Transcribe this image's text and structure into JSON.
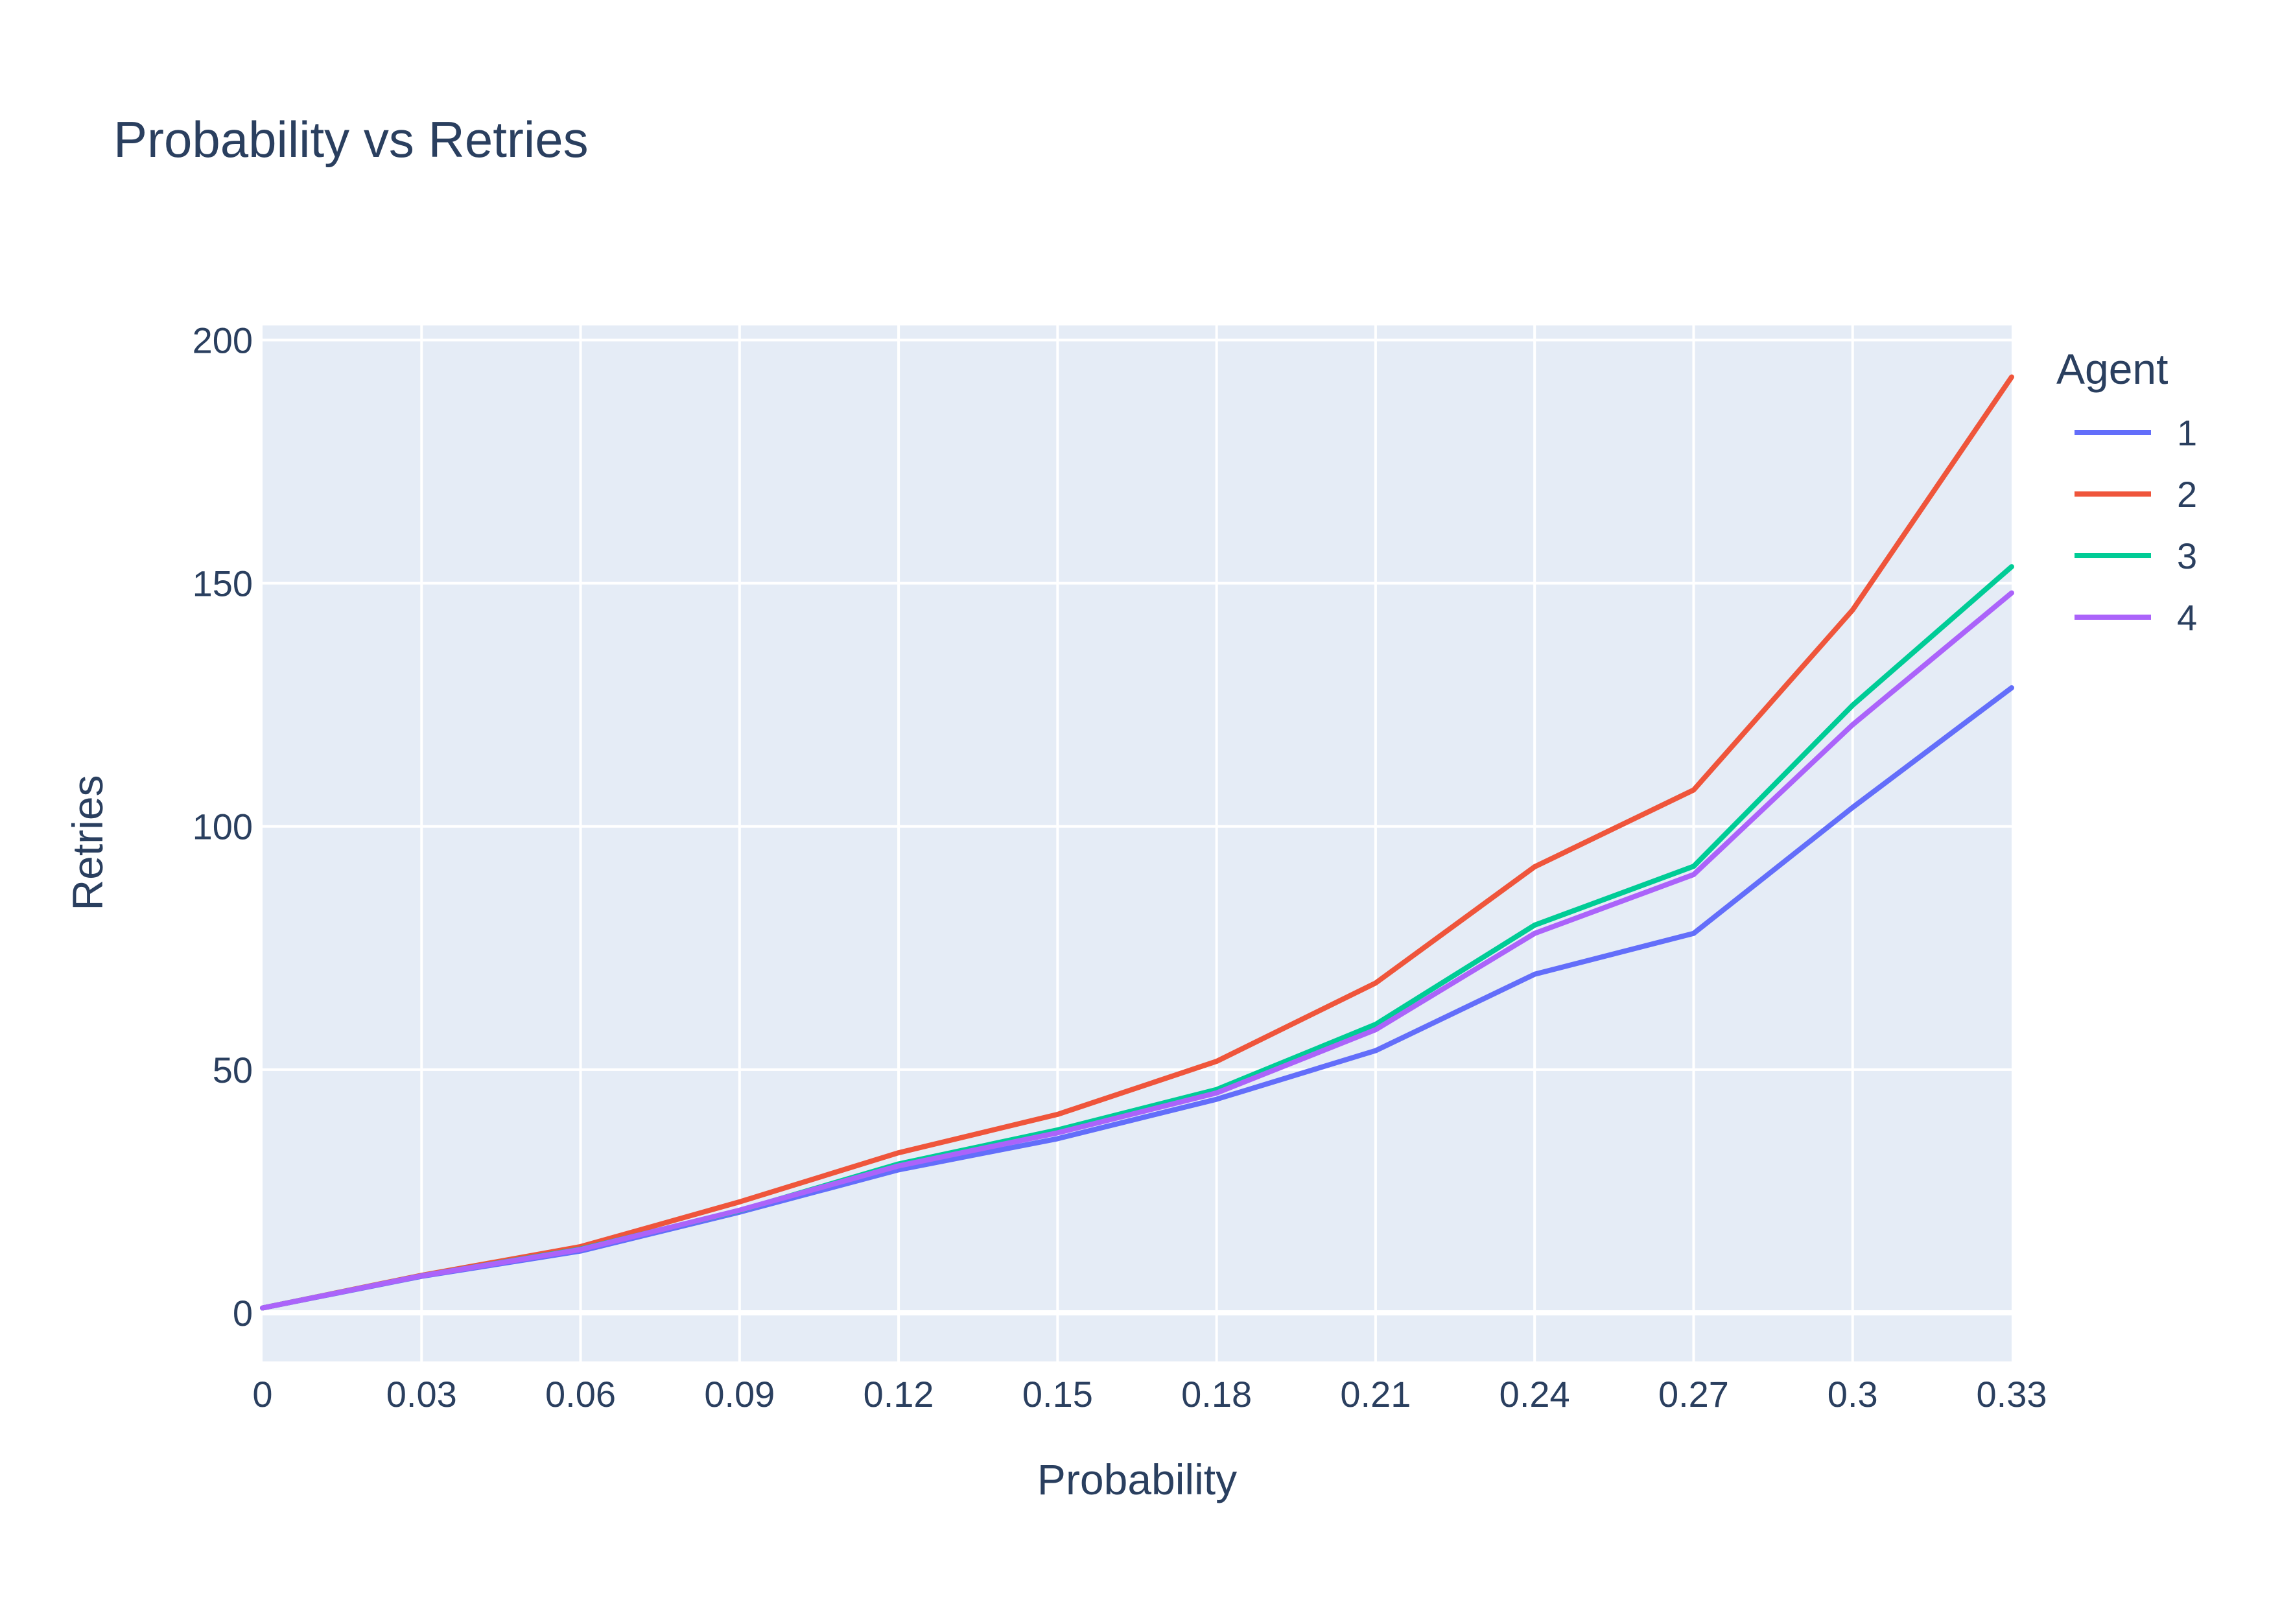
{
  "chart_data": {
    "type": "line",
    "title": "Probability vs Retries",
    "xlabel": "Probability",
    "ylabel": "Retries",
    "x": [
      0,
      0.03,
      0.06,
      0.09,
      0.12,
      0.15,
      0.18,
      0.21,
      0.24,
      0.27,
      0.3,
      0.33
    ],
    "x_ticks": [
      "0",
      "0.03",
      "0.06",
      "0.09",
      "0.12",
      "0.15",
      "0.18",
      "0.21",
      "0.24",
      "0.27",
      "0.3",
      "0.33"
    ],
    "y_ticks": [
      "0",
      "50",
      "100",
      "150",
      "200"
    ],
    "xlim": [
      0,
      0.33
    ],
    "ylim": [
      -10,
      203
    ],
    "grid": true,
    "legend_title": "Agent",
    "legend_position": "top-right",
    "series": [
      {
        "name": "1",
        "color": "#636efa",
        "values": [
          1,
          7.5,
          12.7,
          20.7,
          29.4,
          35.8,
          43.9,
          53.9,
          69.6,
          78,
          103.9,
          128.5
        ]
      },
      {
        "name": "2",
        "color": "#ef553b",
        "values": [
          1,
          7.7,
          13.6,
          22.8,
          32.9,
          40.8,
          51.7,
          67.8,
          91.7,
          107.5,
          144.5,
          192.4
        ]
      },
      {
        "name": "3",
        "color": "#00cc96",
        "values": [
          1,
          7.6,
          13.1,
          21,
          30.6,
          37.6,
          45.9,
          59.3,
          79.7,
          91.8,
          124.9,
          153.4
        ]
      },
      {
        "name": "4",
        "color": "#ab63fa",
        "values": [
          1,
          7.6,
          13,
          21.1,
          30.2,
          37,
          45.2,
          58.2,
          78,
          90.1,
          120.9,
          148
        ]
      }
    ]
  }
}
